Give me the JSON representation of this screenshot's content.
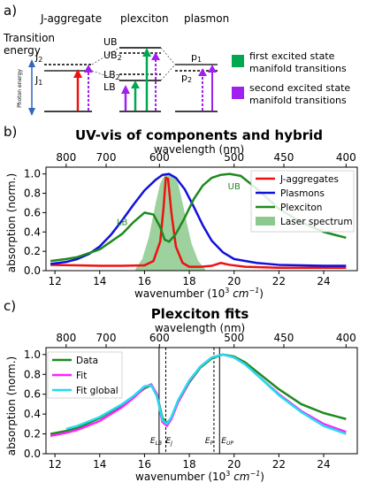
{
  "panel_a": {
    "letter": "a)",
    "col_labels": [
      "J-aggregate",
      "plexciton",
      "plasmon"
    ],
    "y_title_line1": "Transition",
    "y_title_line2": "energy",
    "photon_energy": "Photon energy",
    "levels": {
      "j2": "J",
      "j2_sub": "2",
      "j1": "J",
      "j1_sub": "1",
      "ub": "UB",
      "ub2": "UB",
      "ub2_sub": "2",
      "lb2": "LB",
      "lb2_sub": "2",
      "lb": "LB",
      "p1": "p",
      "p1_sub": "1",
      "p2": "p",
      "p2_sub": "2"
    },
    "legend": [
      {
        "color": "#00a850",
        "line1": "first excited state",
        "line2": "manifold transitions"
      },
      {
        "color": "#a020f0",
        "line1": "second excited state",
        "line2": "manifold transitions"
      }
    ],
    "colors": {
      "red": "#ee1111",
      "green": "#00a850",
      "purple": "#a020f0",
      "blue": "#3366bb"
    }
  },
  "chart_data": [
    {
      "type": "line",
      "letter": "b)",
      "title": "UV-vis of components and hybrid",
      "xlabel": "wavenumber (10",
      "xlabel_sup": "3",
      "xlabel_unit": " cm",
      "xlabel_unit_sup": "−1",
      "xlabel_close": ")",
      "ylabel": "absorption (norm.)",
      "top_axis_label": "wavelength (nm)",
      "xlim": [
        11.6,
        25.5
      ],
      "ylim": [
        0,
        1.07
      ],
      "xticks": [
        12,
        14,
        16,
        18,
        20,
        22,
        24
      ],
      "yticks": [
        0.0,
        0.2,
        0.4,
        0.6,
        0.8,
        1.0
      ],
      "top_ticks": [
        800,
        700,
        600,
        500,
        450,
        400
      ],
      "legend_position": "upper right",
      "annotations": [
        {
          "text": "LB",
          "x": 15.0,
          "y": 0.47
        },
        {
          "text": "UB",
          "x": 20.0,
          "y": 0.84
        }
      ],
      "series": [
        {
          "name": "J-aggregates",
          "color": "#ee1111",
          "x": [
            11.8,
            13,
            14,
            15,
            16,
            16.4,
            16.7,
            16.85,
            16.95,
            17.05,
            17.2,
            17.4,
            17.7,
            18,
            18.5,
            19,
            19.4,
            19.8,
            20.5,
            22,
            24,
            25
          ],
          "y": [
            0.06,
            0.055,
            0.05,
            0.05,
            0.055,
            0.1,
            0.3,
            0.65,
            0.96,
            0.95,
            0.6,
            0.25,
            0.08,
            0.04,
            0.04,
            0.05,
            0.08,
            0.06,
            0.04,
            0.03,
            0.03,
            0.03
          ]
        },
        {
          "name": "Plasmons",
          "color": "#1111dd",
          "x": [
            11.8,
            12.5,
            13,
            13.5,
            14,
            14.5,
            15,
            15.5,
            16,
            16.5,
            16.8,
            17.1,
            17.4,
            17.8,
            18.2,
            18.6,
            19,
            19.5,
            20,
            21,
            22,
            23,
            24,
            25
          ],
          "y": [
            0.07,
            0.09,
            0.12,
            0.17,
            0.25,
            0.37,
            0.52,
            0.68,
            0.83,
            0.94,
            0.99,
            1.0,
            0.96,
            0.84,
            0.66,
            0.47,
            0.31,
            0.19,
            0.12,
            0.08,
            0.06,
            0.055,
            0.05,
            0.05
          ]
        },
        {
          "name": "Plexciton",
          "color": "#1e8a1e",
          "x": [
            11.8,
            12.5,
            13,
            14,
            15,
            15.5,
            16,
            16.4,
            16.7,
            16.9,
            17.1,
            17.4,
            17.8,
            18.2,
            18.6,
            19,
            19.4,
            19.8,
            20.3,
            21,
            22,
            23,
            24,
            25
          ],
          "y": [
            0.1,
            0.12,
            0.14,
            0.22,
            0.38,
            0.5,
            0.6,
            0.58,
            0.45,
            0.32,
            0.3,
            0.38,
            0.55,
            0.74,
            0.88,
            0.96,
            0.99,
            1.0,
            0.98,
            0.85,
            0.64,
            0.5,
            0.4,
            0.34
          ]
        },
        {
          "name": "Laser spectrum",
          "color": "#8cc98c",
          "fill": true,
          "x": [
            15.6,
            15.9,
            16.2,
            16.5,
            16.7,
            16.9,
            17.1,
            17.3,
            17.5,
            17.7,
            17.9,
            18.1,
            18.4,
            18.7
          ],
          "y": [
            0.02,
            0.12,
            0.35,
            0.7,
            0.9,
            0.99,
            1.0,
            0.98,
            0.9,
            0.7,
            0.48,
            0.28,
            0.1,
            0.02
          ]
        }
      ]
    },
    {
      "type": "line",
      "letter": "c)",
      "title": "Plexciton fits",
      "xlabel": "wavenumber (10",
      "xlabel_sup": "3",
      "xlabel_unit": " cm",
      "xlabel_unit_sup": "−1",
      "xlabel_close": ")",
      "ylabel": "absorption (norm.)",
      "top_axis_label": "wavelength (nm)",
      "xlim": [
        11.6,
        25.5
      ],
      "ylim": [
        0,
        1.07
      ],
      "xticks": [
        12,
        14,
        16,
        18,
        20,
        22,
        24
      ],
      "yticks": [
        0.0,
        0.2,
        0.4,
        0.6,
        0.8,
        1.0
      ],
      "top_ticks": [
        800,
        700,
        600,
        500,
        450,
        400
      ],
      "legend_position": "upper left",
      "vlines": [
        {
          "x": 16.65,
          "style": "solid",
          "label": "E",
          "sub": "LB"
        },
        {
          "x": 16.95,
          "style": "dashed",
          "label": "E",
          "sub": "J"
        },
        {
          "x": 19.1,
          "style": "dashed",
          "label": "E",
          "sub": "P"
        },
        {
          "x": 19.35,
          "style": "solid",
          "label": "E",
          "sub": "UP"
        }
      ],
      "series": [
        {
          "name": "Data",
          "color": "#1e8a1e",
          "x": [
            11.8,
            12.5,
            13,
            14,
            15,
            15.5,
            16,
            16.3,
            16.55,
            16.8,
            17.0,
            17.2,
            17.5,
            18,
            18.5,
            19,
            19.5,
            20,
            20.5,
            21,
            22,
            23,
            24,
            25
          ],
          "y": [
            0.2,
            0.23,
            0.26,
            0.36,
            0.49,
            0.57,
            0.66,
            0.69,
            0.6,
            0.36,
            0.31,
            0.36,
            0.52,
            0.72,
            0.87,
            0.96,
            1.0,
            0.98,
            0.92,
            0.83,
            0.65,
            0.5,
            0.41,
            0.35
          ]
        },
        {
          "name": "Fit",
          "color": "#ff22ff",
          "x": [
            11.8,
            12.5,
            13,
            14,
            15,
            15.5,
            16,
            16.3,
            16.55,
            16.8,
            17.0,
            17.2,
            17.5,
            18,
            18.5,
            19,
            19.5,
            20,
            20.5,
            21,
            22,
            23,
            24,
            25
          ],
          "y": [
            0.18,
            0.21,
            0.24,
            0.33,
            0.47,
            0.56,
            0.67,
            0.7,
            0.6,
            0.32,
            0.28,
            0.35,
            0.52,
            0.73,
            0.88,
            0.97,
            1.0,
            0.97,
            0.9,
            0.8,
            0.6,
            0.43,
            0.3,
            0.22
          ]
        },
        {
          "name": "Fit global",
          "color": "#22ddee",
          "x": [
            12.5,
            13,
            14,
            15,
            15.5,
            16,
            16.3,
            16.55,
            16.8,
            17.0,
            17.2,
            17.5,
            18,
            18.5,
            19,
            19.5,
            20,
            20.5,
            21,
            22,
            23,
            24,
            25
          ],
          "y": [
            0.25,
            0.28,
            0.37,
            0.5,
            0.58,
            0.68,
            0.69,
            0.58,
            0.34,
            0.3,
            0.37,
            0.54,
            0.74,
            0.88,
            0.97,
            1.0,
            0.97,
            0.9,
            0.8,
            0.59,
            0.42,
            0.28,
            0.2
          ]
        }
      ]
    }
  ]
}
